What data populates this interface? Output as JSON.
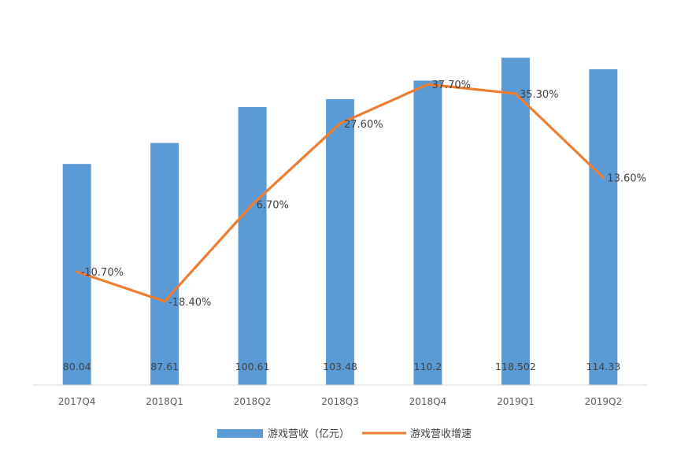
{
  "chart_data": {
    "type": "bar",
    "categories": [
      "2017Q4",
      "2018Q1",
      "2018Q2",
      "2018Q3",
      "2018Q4",
      "2019Q1",
      "2019Q2"
    ],
    "series": [
      {
        "name": "游戏营收（亿元）",
        "type": "bar",
        "color": "#5B9BD5",
        "values": [
          80.04,
          87.61,
          100.61,
          103.48,
          110.2,
          118.502,
          114.33
        ],
        "labels": [
          "80.04",
          "87.61",
          "100.61",
          "103.48",
          "110.2",
          "118.502",
          "114.33"
        ]
      },
      {
        "name": "游戏营收增速",
        "type": "line",
        "color": "#ED7D31",
        "values": [
          -10.7,
          -18.4,
          6.7,
          27.6,
          37.7,
          35.3,
          13.6
        ],
        "labels": [
          "-10.70%",
          "-18.40%",
          "6.70%",
          "27.60%",
          "37.70%",
          "35.30%",
          "13.60%"
        ]
      }
    ],
    "title": "",
    "xlabel": "",
    "ylabel": "",
    "ylim_bar": [
      0,
      122
    ],
    "ylim_line": [
      -40,
      42
    ],
    "grid": false,
    "legend_position": "bottom"
  }
}
